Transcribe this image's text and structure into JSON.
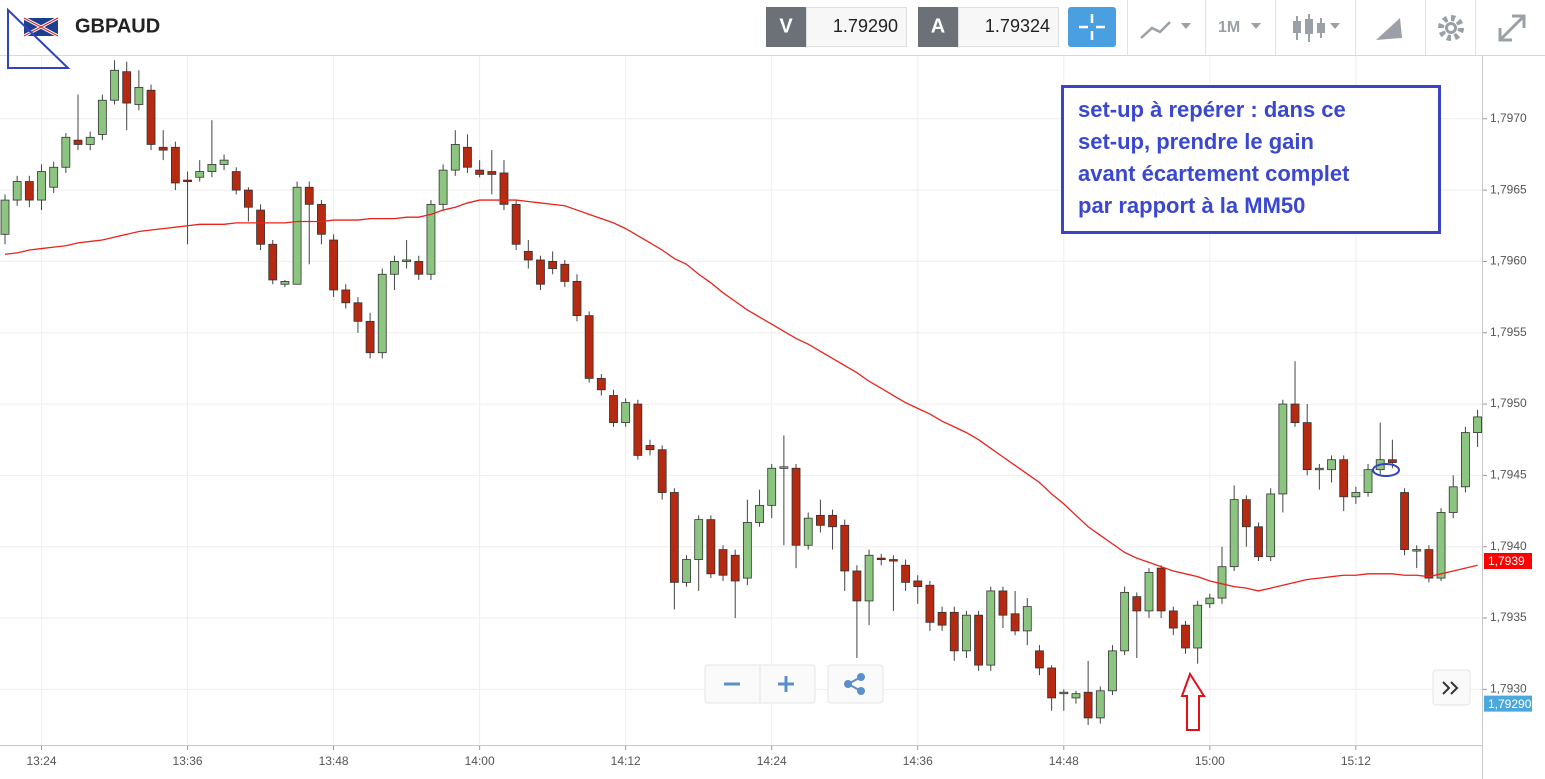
{
  "header": {
    "symbol": "GBPAUD",
    "bid_label": "V",
    "bid": "1.79290",
    "ask_label": "A",
    "ask": "1.79324",
    "timeframe": "1M"
  },
  "chart_data": {
    "type": "candlestick",
    "categories": [
      null,
      null,
      null,
      "13:24",
      null,
      null,
      null,
      null,
      null,
      null,
      null,
      null,
      null,
      null,
      null,
      "13:36",
      null,
      null,
      null,
      null,
      null,
      null,
      null,
      null,
      null,
      null,
      null,
      "13:48",
      null,
      null,
      null,
      null,
      null,
      null,
      null,
      null,
      null,
      null,
      null,
      "14:00",
      null,
      null,
      null,
      null,
      null,
      null,
      null,
      null,
      null,
      null,
      null,
      "14:12",
      null,
      null,
      null,
      null,
      null,
      null,
      null,
      null,
      null,
      null,
      null,
      "14:24",
      null,
      null,
      null,
      null,
      null,
      null,
      null,
      null,
      null,
      null,
      null,
      "14:36",
      null,
      null,
      null,
      null,
      null,
      null,
      null,
      null,
      null,
      null,
      null,
      "14:48",
      null,
      null,
      null,
      null,
      null,
      null,
      null,
      null,
      null,
      null,
      null,
      "15:00",
      null,
      null,
      null,
      null,
      null,
      null,
      null,
      null,
      null,
      null,
      null,
      "15:12",
      null,
      null,
      null,
      null,
      null,
      null,
      null,
      null,
      null,
      null
    ],
    "open": [
      1.79619,
      1.79643,
      1.79656,
      1.79643,
      1.79652,
      1.79666,
      1.79685,
      1.79682,
      1.79689,
      1.79713,
      1.79733,
      1.7971,
      1.7972,
      1.7968,
      1.7968,
      1.79657,
      1.79659,
      1.79663,
      1.79668,
      1.79663,
      1.7965,
      1.79636,
      1.79612,
      1.79584,
      1.79584,
      1.79652,
      1.7964,
      1.79615,
      1.7958,
      1.79571,
      1.79558,
      1.79536,
      1.79591,
      1.796,
      1.796,
      1.79591,
      1.7964,
      1.79664,
      1.7968,
      1.79664,
      1.79663,
      1.79662,
      1.7964,
      1.79607,
      1.79601,
      1.796,
      1.79598,
      1.79586,
      1.79562,
      1.79518,
      1.79506,
      1.79487,
      1.795,
      1.79471,
      1.79468,
      1.79438,
      1.79375,
      1.79391,
      1.79419,
      1.79398,
      1.79394,
      1.79378,
      1.79417,
      1.79429,
      1.79455,
      1.79455,
      1.79401,
      1.79422,
      1.79422,
      1.79415,
      1.79383,
      1.79362,
      1.79392,
      1.79391,
      1.79387,
      1.79376,
      1.79373,
      1.79354,
      1.79354,
      1.79327,
      1.79352,
      1.79317,
      1.79369,
      1.79353,
      1.79341,
      1.79327,
      1.79315,
      1.79297,
      1.79294,
      1.79298,
      1.7928,
      1.79299,
      1.79327,
      1.79365,
      1.79355,
      1.79385,
      1.79355,
      1.79345,
      1.79329,
      1.7936,
      1.79364,
      1.79386,
      1.79433,
      1.79414,
      1.79393,
      1.79437,
      1.795,
      1.79487,
      1.79454,
      1.79454,
      1.79461,
      1.79435,
      1.79438,
      1.79454,
      1.79461,
      1.79438,
      1.79398,
      1.79398,
      1.79378,
      1.79424,
      1.79442,
      1.7948
    ],
    "high": [
      1.79647,
      1.7966,
      1.7966,
      1.79668,
      1.7967,
      1.7969,
      1.79717,
      1.79691,
      1.79717,
      1.79741,
      1.7974,
      1.79734,
      1.79724,
      1.79692,
      1.79684,
      1.79663,
      1.79671,
      1.79699,
      1.79675,
      1.79666,
      1.79652,
      1.7964,
      1.79615,
      1.79587,
      1.79656,
      1.79656,
      1.79643,
      1.79619,
      1.79584,
      1.79575,
      1.79564,
      1.79595,
      1.79604,
      1.79615,
      1.79604,
      1.79643,
      1.79668,
      1.79692,
      1.79689,
      1.79671,
      1.79678,
      1.79671,
      1.79643,
      1.79615,
      1.79604,
      1.79607,
      1.79601,
      1.79591,
      1.79565,
      1.79521,
      1.7951,
      1.79504,
      1.79503,
      1.79475,
      1.79471,
      1.79441,
      1.79394,
      1.79422,
      1.79422,
      1.79401,
      1.79398,
      1.79433,
      1.7944,
      1.79458,
      1.79478,
      1.79458,
      1.79424,
      1.79433,
      1.79426,
      1.79419,
      1.79387,
      1.79398,
      1.79395,
      1.79394,
      1.79391,
      1.7938,
      1.79376,
      1.79358,
      1.79358,
      1.79355,
      1.79355,
      1.79372,
      1.79372,
      1.79369,
      1.79364,
      1.79331,
      1.79317,
      1.793,
      1.79299,
      1.7932,
      1.79302,
      1.79331,
      1.79372,
      1.79368,
      1.79385,
      1.79387,
      1.79358,
      1.79348,
      1.79362,
      1.79367,
      1.794,
      1.79443,
      1.79436,
      1.79417,
      1.79441,
      1.79503,
      1.7953,
      1.795,
      1.79458,
      1.79464,
      1.79464,
      1.79442,
      1.79458,
      1.79487,
      1.79475,
      1.79441,
      1.79401,
      1.79401,
      1.79427,
      1.7945,
      1.79484,
      1.79496
    ],
    "low": [
      1.79612,
      1.79639,
      1.79638,
      1.79636,
      1.79648,
      1.79662,
      1.79678,
      1.79678,
      1.79685,
      1.7971,
      1.79692,
      1.79706,
      1.79678,
      1.79671,
      1.7965,
      1.79612,
      1.79656,
      1.79659,
      1.79664,
      1.79647,
      1.79628,
      1.79608,
      1.79584,
      1.79582,
      1.79584,
      1.79598,
      1.79612,
      1.79575,
      1.79567,
      1.7955,
      1.79532,
      1.79532,
      1.7958,
      1.79595,
      1.79587,
      1.79587,
      1.79636,
      1.7966,
      1.79662,
      1.79659,
      1.79647,
      1.79636,
      1.79608,
      1.79595,
      1.7958,
      1.79591,
      1.79582,
      1.79558,
      1.79515,
      1.79506,
      1.79484,
      1.79484,
      1.79461,
      1.79464,
      1.79433,
      1.79356,
      1.79372,
      1.79369,
      1.79378,
      1.79376,
      1.7935,
      1.79373,
      1.79414,
      1.7942,
      1.79401,
      1.79385,
      1.79398,
      1.7941,
      1.79398,
      1.79369,
      1.79322,
      1.79345,
      1.79387,
      1.79355,
      1.79369,
      1.7936,
      1.79341,
      1.79341,
      1.7932,
      1.79322,
      1.79313,
      1.79313,
      1.79343,
      1.79338,
      1.79331,
      1.7931,
      1.79285,
      1.79285,
      1.7929,
      1.79275,
      1.79276,
      1.79296,
      1.79324,
      1.79322,
      1.7935,
      1.7935,
      1.79338,
      1.79325,
      1.79318,
      1.79357,
      1.7936,
      1.79383,
      1.794,
      1.7939,
      1.7939,
      1.79424,
      1.79484,
      1.7945,
      1.7944,
      1.79445,
      1.79425,
      1.7943,
      1.79435,
      1.7945,
      1.79455,
      1.79394,
      1.79385,
      1.79375,
      1.79376,
      1.7942,
      1.79438,
      1.7947
    ],
    "close": [
      1.79643,
      1.79656,
      1.79643,
      1.79663,
      1.79666,
      1.79687,
      1.79682,
      1.79687,
      1.79713,
      1.79734,
      1.79711,
      1.79722,
      1.79682,
      1.79678,
      1.79655,
      1.79656,
      1.79663,
      1.79668,
      1.79671,
      1.7965,
      1.79638,
      1.79612,
      1.79587,
      1.79586,
      1.79652,
      1.7964,
      1.79619,
      1.7958,
      1.79571,
      1.79558,
      1.79536,
      1.79591,
      1.796,
      1.79601,
      1.79591,
      1.7964,
      1.79664,
      1.79682,
      1.79666,
      1.79661,
      1.79661,
      1.7964,
      1.79612,
      1.79601,
      1.79584,
      1.79595,
      1.79586,
      1.79562,
      1.79518,
      1.7951,
      1.79487,
      1.79501,
      1.79464,
      1.79468,
      1.79438,
      1.79375,
      1.79391,
      1.79419,
      1.79381,
      1.7938,
      1.79376,
      1.79417,
      1.79429,
      1.79455,
      1.79456,
      1.79401,
      1.7942,
      1.79415,
      1.79414,
      1.79383,
      1.79362,
      1.79394,
      1.79391,
      1.7939,
      1.79375,
      1.79372,
      1.79347,
      1.79345,
      1.79327,
      1.79352,
      1.79317,
      1.79369,
      1.79352,
      1.79341,
      1.79358,
      1.79315,
      1.79294,
      1.79298,
      1.79297,
      1.7928,
      1.79299,
      1.79327,
      1.79368,
      1.79355,
      1.79382,
      1.79355,
      1.79343,
      1.79329,
      1.79359,
      1.79364,
      1.79386,
      1.79433,
      1.79414,
      1.79393,
      1.79437,
      1.795,
      1.79487,
      1.79454,
      1.79455,
      1.79461,
      1.79435,
      1.79438,
      1.79454,
      1.79461,
      1.79459,
      1.79398,
      1.79398,
      1.79378,
      1.79424,
      1.79442,
      1.7948,
      1.79491
    ],
    "up_color": "#8cc57f",
    "down_color": "#b52a10",
    "ma": {
      "color": "#e8231b",
      "values": [
        1.79605,
        1.79606,
        1.79608,
        1.79609,
        1.7961,
        1.79611,
        1.79613,
        1.79614,
        1.79615,
        1.79617,
        1.79619,
        1.79621,
        1.79622,
        1.79623,
        1.79624,
        1.79625,
        1.79626,
        1.79626,
        1.79626,
        1.79627,
        1.79627,
        1.79627,
        1.79627,
        1.79627,
        1.79628,
        1.79628,
        1.79628,
        1.79629,
        1.79629,
        1.79629,
        1.7963,
        1.7963,
        1.7963,
        1.79631,
        1.79631,
        1.79633,
        1.79636,
        1.79638,
        1.79641,
        1.79643,
        1.79643,
        1.79643,
        1.79643,
        1.79642,
        1.79641,
        1.7964,
        1.79639,
        1.79636,
        1.79633,
        1.7963,
        1.79627,
        1.79623,
        1.79618,
        1.79613,
        1.79608,
        1.79602,
        1.79598,
        1.79591,
        1.79585,
        1.79578,
        1.79572,
        1.79566,
        1.79561,
        1.79556,
        1.79551,
        1.79546,
        1.79542,
        1.79537,
        1.79532,
        1.79527,
        1.79522,
        1.79516,
        1.79511,
        1.79506,
        1.79501,
        1.79497,
        1.79493,
        1.79488,
        1.79484,
        1.7948,
        1.79475,
        1.79469,
        1.79463,
        1.79457,
        1.79451,
        1.79445,
        1.79437,
        1.7943,
        1.79422,
        1.79414,
        1.79408,
        1.79402,
        1.79396,
        1.79392,
        1.79389,
        1.79386,
        1.79383,
        1.79381,
        1.79379,
        1.79376,
        1.79374,
        1.79372,
        1.79371,
        1.79369,
        1.79371,
        1.79373,
        1.79375,
        1.79377,
        1.79378,
        1.79379,
        1.7938,
        1.7938,
        1.79381,
        1.79381,
        1.79381,
        1.7938,
        1.7938,
        1.79379,
        1.79381,
        1.79383,
        1.79385,
        1.79387
      ]
    },
    "ylim": [
      1.79261,
      1.79744
    ],
    "yticks": [
      {
        "value": 1.793,
        "label": "1,7930"
      },
      {
        "value": 1.7935,
        "label": "1,7935"
      },
      {
        "value": 1.794,
        "label": "1,7940"
      },
      {
        "value": 1.7945,
        "label": "1,7945"
      },
      {
        "value": 1.795,
        "label": "1,7950"
      },
      {
        "value": 1.7955,
        "label": "1,7955"
      },
      {
        "value": 1.796,
        "label": "1,7960"
      },
      {
        "value": 1.7965,
        "label": "1,7965"
      },
      {
        "value": 1.797,
        "label": "1,7970"
      }
    ],
    "grid": true,
    "price_tags": [
      {
        "value": 1.7939,
        "label": "1,7939",
        "color": "#ff0000"
      },
      {
        "value": 1.7929,
        "label": "1,79290",
        "color": "#4aa8dc"
      }
    ],
    "annotation": [
      "set-up à repérer : dans ce",
      "set-up, prendre le gain",
      "avant écartement complet",
      "par rapport à la MM50"
    ]
  }
}
